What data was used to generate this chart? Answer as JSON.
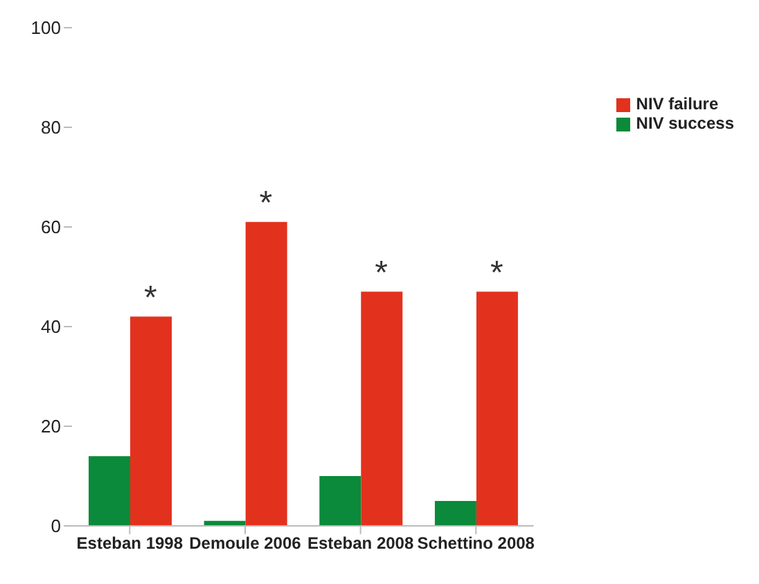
{
  "chart_data": {
    "type": "bar",
    "categories": [
      "Esteban 1998",
      "Demoule 2006",
      "Esteban 2008",
      "Schettino 2008"
    ],
    "series": [
      {
        "name": "NIV success",
        "color": "#0a8a3a",
        "values": [
          14,
          1,
          10,
          5
        ]
      },
      {
        "name": "NIV failure",
        "color": "#e2321e",
        "values": [
          42,
          61,
          47,
          47
        ]
      }
    ],
    "ylim": [
      0,
      100
    ],
    "yticks": [
      0,
      20,
      40,
      60,
      80,
      100
    ],
    "grid": false,
    "legend": "top right",
    "annotations": [
      {
        "text": "*",
        "x": "Esteban 1998",
        "y": 42
      },
      {
        "text": "*",
        "x": "Demoule 2006",
        "y": 61
      },
      {
        "text": "*",
        "x": "Esteban 2008",
        "y": 47
      },
      {
        "text": "*",
        "x": "Schettino 2008",
        "y": 47
      }
    ]
  }
}
